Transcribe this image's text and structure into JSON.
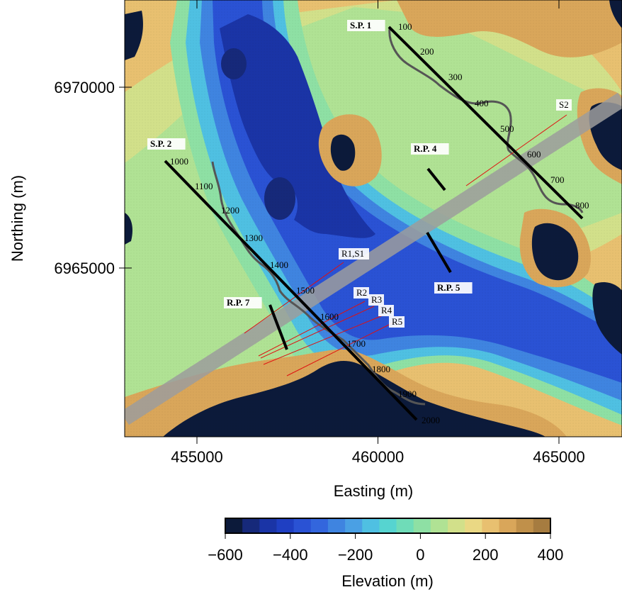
{
  "map": {
    "xaxis": {
      "label": "Easting (m)",
      "ticks": [
        {
          "value": 455000,
          "label": "455000"
        },
        {
          "value": 460000,
          "label": "460000"
        },
        {
          "value": 465000,
          "label": "465000"
        }
      ]
    },
    "yaxis": {
      "label": "Northing (m)",
      "ticks": [
        {
          "value": 6970000,
          "label": "6970000"
        },
        {
          "value": 6965000,
          "label": "6965000"
        }
      ]
    },
    "colorbar": {
      "label": "Elevation (m)",
      "ticks": [
        "−600",
        "−400",
        "−200",
        "0",
        "200",
        "400"
      ],
      "colors": [
        "#0c1a3a",
        "#16297a",
        "#1a34a6",
        "#1f3fc2",
        "#2a52d4",
        "#3366dd",
        "#3f84e0",
        "#4aa0e4",
        "#4fc0e2",
        "#56d4d0",
        "#6fdcb8",
        "#8ee0a4",
        "#b0e294",
        "#d2e08a",
        "#ead884",
        "#e8c070",
        "#d9a65a",
        "#c0904a",
        "#a67c40"
      ]
    },
    "shot_point_labels": [
      "S.P. 1",
      "S.P. 2"
    ],
    "receiver_point_labels": [
      "R.P. 4",
      "R.P. 5",
      "R.P. 7"
    ],
    "line_labels": [
      "R1,S1",
      "R2",
      "R3",
      "R4",
      "R5",
      "S2"
    ],
    "line1_chainage": [
      "100",
      "200",
      "300",
      "400",
      "500",
      "600",
      "700",
      "800"
    ],
    "line2_chainage": [
      "1000",
      "1100",
      "1200",
      "1300",
      "1400",
      "1500",
      "1600",
      "1700",
      "1800",
      "1900",
      "2000"
    ]
  }
}
